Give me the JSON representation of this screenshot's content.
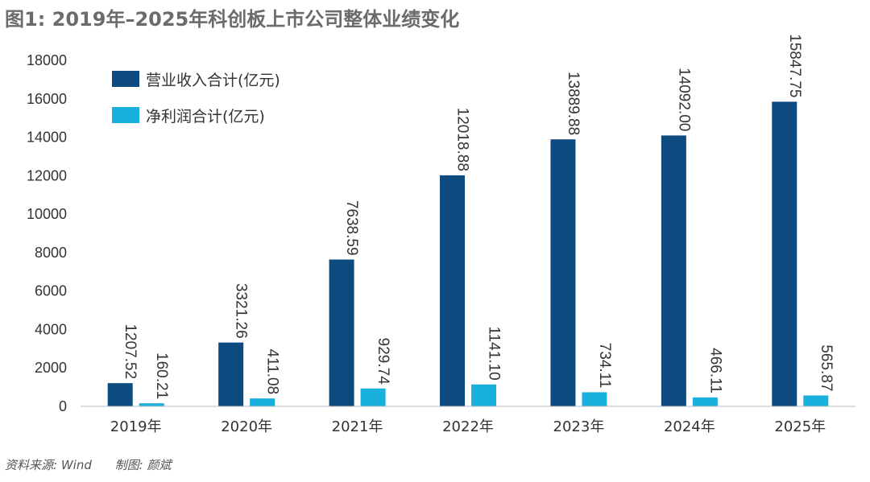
{
  "title": "图1: 2019年–2025年科创板上市公司整体业绩变化",
  "footer": {
    "source": "资料来源: Wind",
    "author": "制图: 颜斌"
  },
  "colors": {
    "revenue": "#0d4a80",
    "profit": "#1ab0de",
    "axis": "#bbbbbb",
    "text": "#333333"
  },
  "chart_data": {
    "type": "bar",
    "title": "图1: 2019年–2025年科创板上市公司整体业绩变化",
    "categories": [
      "2019年",
      "2020年",
      "2021年",
      "2022年",
      "2023年",
      "2024年",
      "2025年"
    ],
    "series": [
      {
        "name": "营业收入合计(亿元)",
        "values": [
          1207.52,
          3321.26,
          7638.59,
          12018.88,
          13889.88,
          14092.0,
          15847.75
        ],
        "labels": [
          "1207.52",
          "3321.26",
          "7638.59",
          "12018.88",
          "13889.88",
          "14092.00",
          "15847.75"
        ]
      },
      {
        "name": "净利润合计(亿元)",
        "values": [
          160.21,
          411.08,
          929.74,
          1141.1,
          734.11,
          466.11,
          565.87
        ],
        "labels": [
          "160.21",
          "411.08",
          "929.74",
          "1141.10",
          "734.11",
          "466.11",
          "565.87"
        ]
      }
    ],
    "yticks": [
      "0",
      "2000",
      "4000",
      "6000",
      "8000",
      "10000",
      "12000",
      "14000",
      "16000",
      "18000"
    ],
    "ylim": [
      0,
      18000
    ],
    "xlabel": "",
    "ylabel": "",
    "grid": false,
    "legend": "top-left"
  }
}
